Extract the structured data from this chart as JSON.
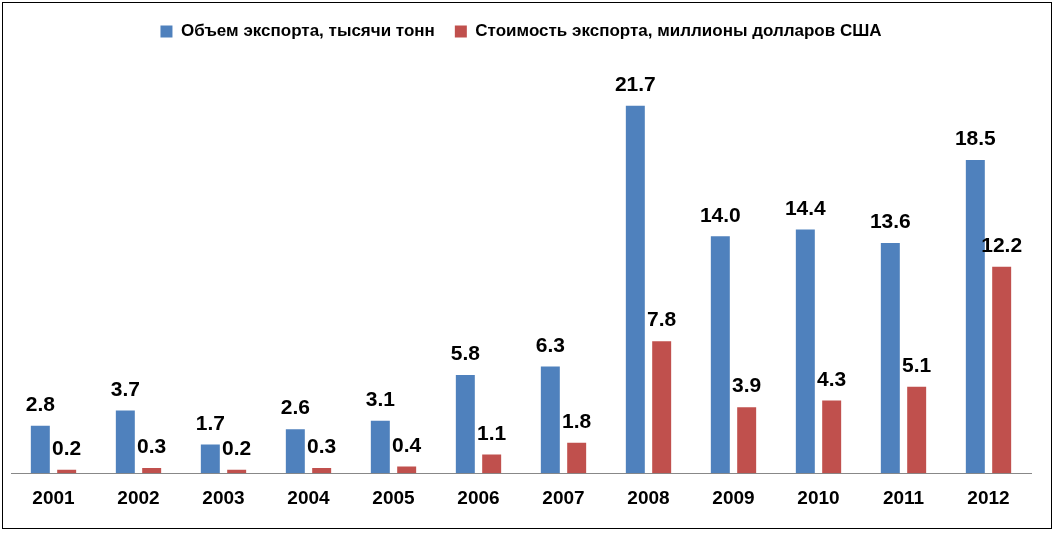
{
  "chart_data": {
    "type": "bar",
    "categories": [
      "2001",
      "2002",
      "2003",
      "2004",
      "2005",
      "2006",
      "2007",
      "2008",
      "2009",
      "2010",
      "2011",
      "2012"
    ],
    "series": [
      {
        "name": "Объем экспорта, тысячи тонн",
        "color": "#4f81bd",
        "values": [
          2.8,
          3.7,
          1.7,
          2.6,
          3.1,
          5.8,
          6.3,
          21.7,
          14.0,
          14.4,
          13.6,
          18.5
        ],
        "value_labels": [
          "2.8",
          "3.7",
          "1.7",
          "2.6",
          "3.1",
          "5.8",
          "6.3",
          "21.7",
          "14.0",
          "14.4",
          "13.6",
          "18.5"
        ]
      },
      {
        "name": "Стоимость экспорта, миллионы долларов США",
        "color": "#c0504d",
        "values": [
          0.2,
          0.3,
          0.2,
          0.3,
          0.4,
          1.1,
          1.8,
          7.8,
          3.9,
          4.3,
          5.1,
          12.2
        ],
        "value_labels": [
          "0.2",
          "0.3",
          "0.2",
          "0.3",
          "0.4",
          "1.1",
          "1.8",
          "7.8",
          "3.9",
          "4.3",
          "5.1",
          "12.2"
        ]
      }
    ],
    "legend": "top",
    "grid": false
  }
}
